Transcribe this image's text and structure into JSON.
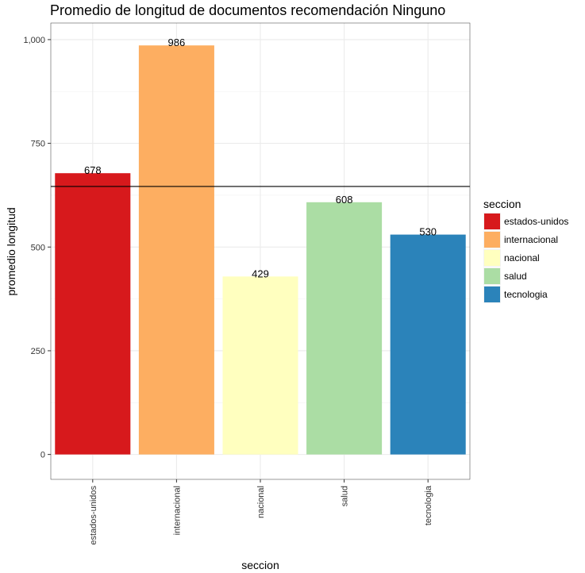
{
  "chart_data": {
    "type": "bar",
    "title": "Promedio de longitud de documentos recomendación Ninguno",
    "xlabel": "seccion",
    "ylabel": "promedio longitud",
    "categories": [
      "estados-unidos",
      "internacional",
      "nacional",
      "salud",
      "tecnologia"
    ],
    "values": [
      678,
      986,
      429,
      608,
      530
    ],
    "value_labels": [
      "678",
      "986",
      "429",
      "608",
      "530"
    ],
    "colors": [
      "#D7191C",
      "#FDAE61",
      "#FFFFBF",
      "#ABDDA4",
      "#2B83BA"
    ],
    "ylim": [
      -60,
      1040
    ],
    "yticks": [
      0,
      250,
      500,
      750,
      1000
    ],
    "ytick_labels": [
      "0",
      "250",
      "500",
      "750",
      "1,000"
    ],
    "hline": 646,
    "grid": true,
    "legend": {
      "title": "seccion",
      "placement": "right",
      "entries": [
        "estados-unidos",
        "internacional",
        "nacional",
        "salud",
        "tecnologia"
      ]
    }
  }
}
